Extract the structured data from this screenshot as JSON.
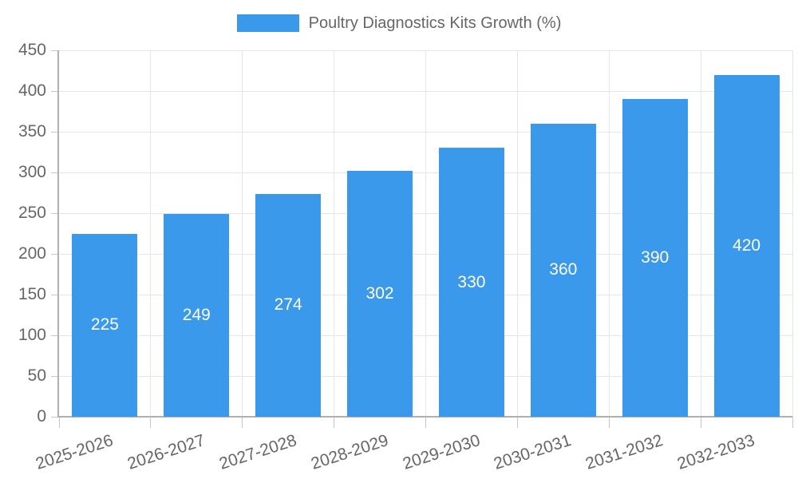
{
  "chart_data": {
    "type": "bar",
    "title": "Poultry Diagnostics Kits Growth (%)",
    "legend_position": "top",
    "categories": [
      "2025-2026",
      "2026-2027",
      "2027-2028",
      "2028-2029",
      "2029-2030",
      "2030-2031",
      "2031-2032",
      "2032-2033"
    ],
    "values": [
      225,
      249,
      274,
      302,
      330,
      360,
      390,
      420
    ],
    "xlabel": "",
    "ylabel": "",
    "ylim": [
      0,
      450
    ],
    "y_ticks": [
      0,
      50,
      100,
      150,
      200,
      250,
      300,
      350,
      400,
      450
    ],
    "grid": true,
    "colors": {
      "bar": "#3B99EC",
      "value_label": "#FFFFFF",
      "axis_text": "#666666",
      "legend_text": "#666666",
      "axis_line": "#B0B0B0",
      "tick": "#C6C6C6",
      "gridline": "#E6E6E6",
      "background": "#FFFFFF"
    }
  }
}
